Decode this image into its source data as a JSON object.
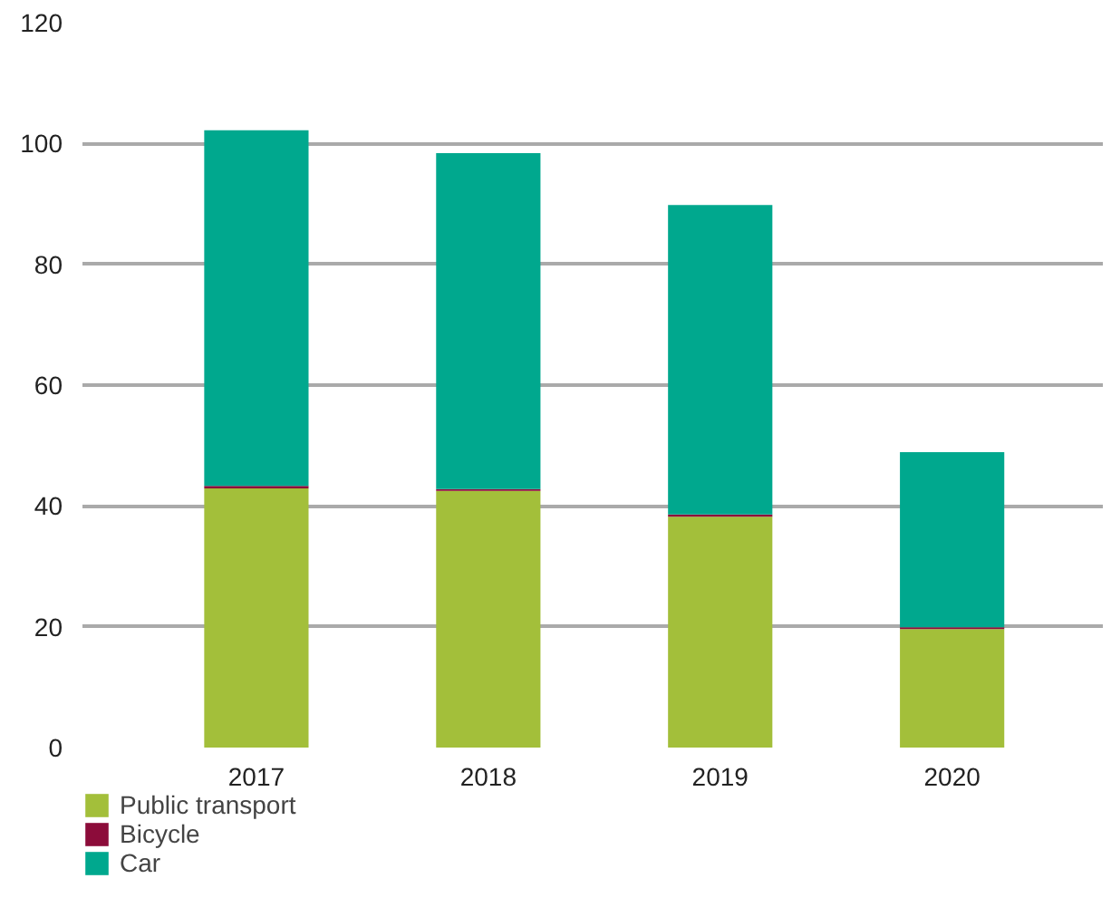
{
  "chart_data": {
    "type": "bar",
    "stacked": true,
    "categories": [
      "2017",
      "2018",
      "2019",
      "2020"
    ],
    "series": [
      {
        "name": "Public transport",
        "color": "#a3bf3a",
        "values": [
          42.9,
          42.5,
          38.2,
          19.6
        ]
      },
      {
        "name": "Bicycle",
        "color": "#8c0c3a",
        "values": [
          0.4,
          0.3,
          0.4,
          0.3
        ]
      },
      {
        "name": "Car",
        "color": "#00a88e",
        "values": [
          58.9,
          55.6,
          51.2,
          29.0
        ]
      }
    ],
    "ylim": [
      0,
      120
    ],
    "yticks": [
      0,
      20,
      40,
      60,
      80,
      100,
      120
    ],
    "grid": "y",
    "legend": "bottom left"
  }
}
